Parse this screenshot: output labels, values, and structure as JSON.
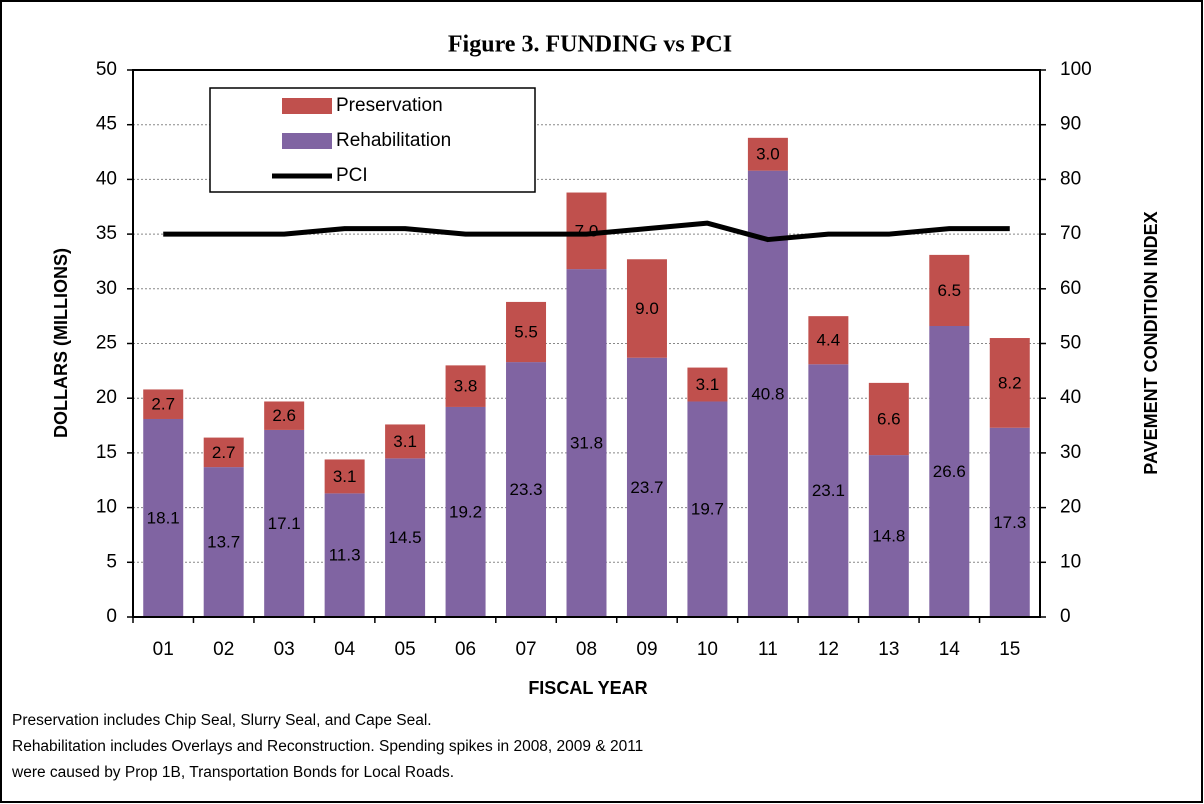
{
  "chart_data": {
    "type": "bar",
    "stacked": true,
    "title": "Figure 3.  FUNDING vs PCI",
    "xlabel": "FISCAL YEAR",
    "ylabel": "DOLLARS (MILLIONS)",
    "y2label": "PAVEMENT CONDITION INDEX",
    "categories": [
      "01",
      "02",
      "03",
      "04",
      "05",
      "06",
      "07",
      "08",
      "09",
      "10",
      "11",
      "12",
      "13",
      "14",
      "15"
    ],
    "series": [
      {
        "name": "Rehabilitation",
        "color": "#8064a2",
        "type": "bar",
        "values": [
          18.1,
          13.7,
          17.1,
          11.3,
          14.5,
          19.2,
          23.3,
          31.8,
          23.7,
          19.7,
          40.8,
          23.1,
          14.8,
          26.6,
          17.3
        ]
      },
      {
        "name": "Preservation",
        "color": "#c0504d",
        "type": "bar",
        "values": [
          2.7,
          2.7,
          2.6,
          3.1,
          3.1,
          3.8,
          5.5,
          7.0,
          9.0,
          3.1,
          3.0,
          4.4,
          6.6,
          6.5,
          8.2
        ],
        "value_labels": [
          "2.7",
          "2.7",
          "2.6",
          "3.1",
          "3.1",
          "3.8",
          "5.5",
          "7.0",
          "9.0",
          "3.1",
          "3.0",
          "4.4",
          "6.6",
          "6.5",
          "8.2"
        ]
      },
      {
        "name": "PCI",
        "color": "#000000",
        "type": "line",
        "axis": "y2",
        "values": [
          70,
          70,
          70,
          71,
          71,
          70,
          70,
          70,
          71,
          72,
          69,
          70,
          70,
          71,
          71
        ]
      }
    ],
    "ylim": [
      0,
      50
    ],
    "yticks": [
      0,
      5,
      10,
      15,
      20,
      25,
      30,
      35,
      40,
      45,
      50
    ],
    "y2lim": [
      0,
      100
    ],
    "y2ticks": [
      0,
      10,
      20,
      30,
      40,
      50,
      60,
      70,
      80,
      90,
      100
    ],
    "grid": true,
    "legend": "upper left",
    "notes": [
      "Preservation includes Chip Seal, Slurry Seal, and Cape Seal.",
      "Rehabilitation includes Overlays and Reconstruction.  Spending spikes in 2008, 2009 & 2011",
      "were caused by Prop 1B, Transportation Bonds for Local Roads."
    ]
  }
}
